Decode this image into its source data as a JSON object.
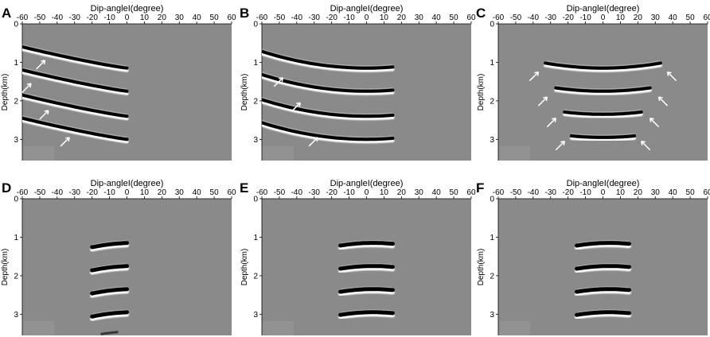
{
  "figure": {
    "x_axis_label": "Dip-angleI(degree)",
    "y_axis_label": "Depth(km)",
    "x_ticks": [
      -60,
      -50,
      -40,
      -30,
      -20,
      -10,
      0,
      10,
      20,
      30,
      40,
      50,
      60
    ],
    "y_ticks": [
      0,
      1,
      2,
      3
    ],
    "x_range": [
      -60,
      60
    ],
    "y_range_km": [
      0,
      3.55
    ],
    "colors": {
      "background": "#8a8a8a",
      "reflector_dark": "#000000",
      "reflector_light": "#ffffff",
      "arrow": "#ffffff"
    },
    "panels": [
      {
        "letter": "A",
        "style": "fan",
        "reflector_depths": [
          1.15,
          1.75,
          2.4,
          3.0
        ],
        "angle_range": [
          -60,
          0
        ],
        "arrows": [
          [
            -47,
            0.95
          ],
          [
            -55,
            1.55
          ],
          [
            -45,
            2.25
          ],
          [
            -33,
            2.95
          ]
        ]
      },
      {
        "letter": "B",
        "style": "smile",
        "reflector_depths": [
          1.15,
          1.75,
          2.4,
          3.0
        ],
        "angle_range": [
          -60,
          15
        ],
        "arrows": [
          [
            -48,
            1.4
          ],
          [
            -38,
            2.05
          ],
          [
            -28,
            2.95
          ]
        ]
      },
      {
        "letter": "C",
        "style": "smile",
        "reflector_depths": [
          1.15,
          1.75,
          2.35,
          2.95
        ],
        "angle_range_by_reflector": [
          [
            -33,
            33
          ],
          [
            -27,
            27
          ],
          [
            -22,
            22
          ],
          [
            -18,
            18
          ]
        ],
        "arrows": [
          [
            -37,
            1.25
          ],
          [
            37,
            1.25
          ],
          [
            -32,
            1.9
          ],
          [
            32,
            1.9
          ],
          [
            -27,
            2.45
          ],
          [
            27,
            2.45
          ],
          [
            -22,
            3.05
          ],
          [
            22,
            3.05
          ]
        ]
      },
      {
        "letter": "D",
        "style": "band",
        "reflector_depths": [
          1.15,
          1.75,
          2.35,
          2.95
        ],
        "angle_range": [
          -20,
          0
        ],
        "extra_bottom": 3.45
      },
      {
        "letter": "E",
        "style": "band",
        "reflector_depths": [
          1.15,
          1.75,
          2.35,
          2.95
        ],
        "angle_range": [
          -15,
          15
        ]
      },
      {
        "letter": "F",
        "style": "band",
        "reflector_depths": [
          1.15,
          1.75,
          2.35,
          2.95
        ],
        "angle_range": [
          -15,
          15
        ]
      }
    ]
  }
}
